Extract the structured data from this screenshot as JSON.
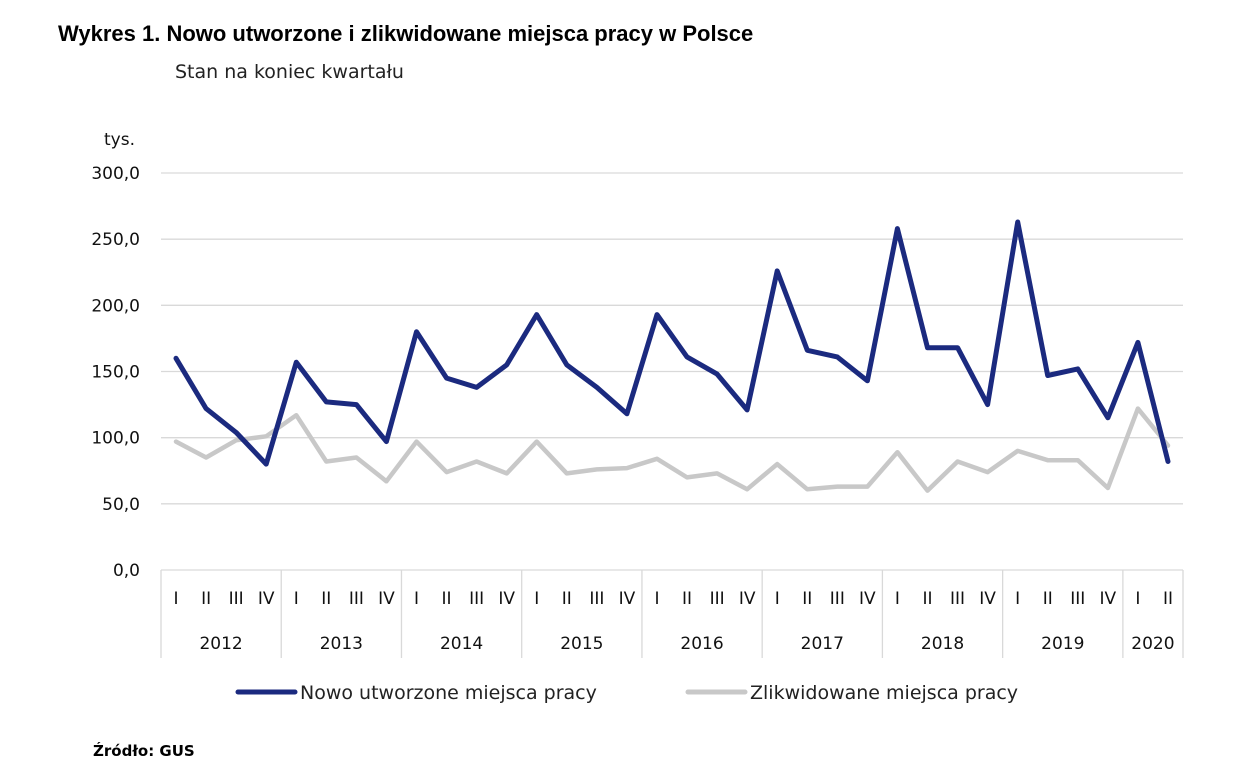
{
  "chart_data": {
    "type": "line",
    "title": "Wykres 1. Nowo utworzone i zlikwidowane miejsca pracy w Polsce",
    "subtitle": "Stan na koniec kwartału",
    "ylabel": "tys.",
    "ylim": [
      0,
      300
    ],
    "yticks": [
      "0,0",
      "50,0",
      "100,0",
      "150,0",
      "200,0",
      "250,0",
      "300,0"
    ],
    "grid": true,
    "legend_position": "bottom",
    "years": [
      {
        "label": "2012",
        "quarters": [
          "I",
          "II",
          "III",
          "IV"
        ]
      },
      {
        "label": "2013",
        "quarters": [
          "I",
          "II",
          "III",
          "IV"
        ]
      },
      {
        "label": "2014",
        "quarters": [
          "I",
          "II",
          "III",
          "IV"
        ]
      },
      {
        "label": "2015",
        "quarters": [
          "I",
          "II",
          "III",
          "IV"
        ]
      },
      {
        "label": "2016",
        "quarters": [
          "I",
          "II",
          "III",
          "IV"
        ]
      },
      {
        "label": "2017",
        "quarters": [
          "I",
          "II",
          "III",
          "IV"
        ]
      },
      {
        "label": "2018",
        "quarters": [
          "I",
          "II",
          "III",
          "IV"
        ]
      },
      {
        "label": "2019",
        "quarters": [
          "I",
          "II",
          "III",
          "IV"
        ]
      },
      {
        "label": "2020",
        "quarters": [
          "I",
          "II"
        ]
      }
    ],
    "series": [
      {
        "name": "Nowo utworzone miejsca pracy",
        "color": "#1b2a7f",
        "values": [
          160,
          122,
          104,
          80,
          157,
          127,
          125,
          97,
          180,
          145,
          138,
          155,
          193,
          155,
          138,
          118,
          193,
          161,
          148,
          121,
          226,
          166,
          161,
          143,
          258,
          168,
          168,
          125,
          263,
          147,
          152,
          115,
          172,
          82
        ]
      },
      {
        "name": "Zlikwidowane miejsca pracy",
        "color": "#c8c8c8",
        "values": [
          97,
          85,
          98,
          101,
          117,
          82,
          85,
          67,
          97,
          74,
          82,
          73,
          97,
          73,
          76,
          77,
          84,
          70,
          73,
          61,
          80,
          61,
          63,
          63,
          89,
          60,
          82,
          74,
          90,
          83,
          83,
          62,
          122,
          94
        ]
      }
    ]
  },
  "source": "Źródło: GUS"
}
